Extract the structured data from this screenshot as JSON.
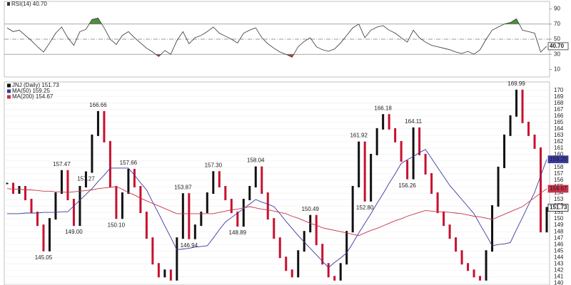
{
  "chart_data": [
    {
      "type": "line",
      "series": [
        {
          "name": "RSI(14) 40.70",
          "color": "#333333",
          "last_label": "40.70",
          "values": [
            65,
            60,
            62,
            55,
            48,
            40,
            33,
            45,
            58,
            66,
            52,
            42,
            60,
            63,
            76,
            78,
            65,
            50,
            43,
            55,
            60,
            52,
            45,
            38,
            33,
            27,
            35,
            30,
            48,
            60,
            44,
            52,
            55,
            60,
            66,
            58,
            54,
            50,
            45,
            58,
            62,
            65,
            52,
            44,
            38,
            33,
            30,
            26,
            40,
            47,
            52,
            40,
            36,
            34,
            37,
            45,
            55,
            65,
            70,
            52,
            62,
            66,
            68,
            62,
            58,
            52,
            46,
            62,
            52,
            46,
            42,
            40,
            38,
            36,
            33,
            31,
            34,
            30,
            36,
            50,
            62,
            66,
            70,
            72,
            77,
            62,
            60,
            58,
            33,
            40.7
          ]
        }
      ],
      "ylim": [
        0,
        100
      ],
      "yticks": [
        10,
        30,
        50,
        70,
        90
      ],
      "overbought": 70,
      "oversold": 30,
      "midline": 50,
      "overbought_color": "#4f8f3f",
      "oversold_color": "#a84a4a"
    },
    {
      "type": "stock",
      "series": [
        {
          "name": "JNJ (Daily) 151.73",
          "color": "#111111",
          "down_color": "#c8102e",
          "last_label": "151.73",
          "values": [
            155.5,
            154,
            155,
            153,
            151,
            149,
            145.05,
            150,
            154,
            157.47,
            153,
            149.0,
            155,
            157.27,
            163,
            166.66,
            162,
            155,
            150.1,
            154,
            157.66,
            155,
            151,
            147,
            143,
            141,
            142,
            140.5,
            147,
            153.87,
            146.94,
            149,
            151,
            154,
            157.3,
            155,
            153,
            151,
            148.89,
            153,
            155,
            158.04,
            154,
            150,
            147,
            144,
            142,
            141,
            145,
            148,
            150.49,
            146,
            143,
            141,
            140.5,
            143,
            148,
            155,
            161.92,
            152.8,
            160,
            164,
            166.18,
            164,
            162,
            159,
            156.26,
            164.11,
            160,
            157,
            154,
            151,
            149,
            147,
            145,
            143,
            142,
            141,
            140.5,
            145,
            152,
            158,
            163,
            166,
            169.99,
            165,
            163,
            161,
            148,
            151.73
          ],
          "value_labels": [
            null,
            null,
            null,
            null,
            null,
            null,
            "145.05",
            null,
            null,
            "157.47",
            null,
            "149.00",
            null,
            "157.27",
            null,
            "166.66",
            null,
            null,
            "150.10",
            null,
            "157.66",
            null,
            null,
            null,
            null,
            null,
            null,
            null,
            null,
            "153.87",
            "146.94",
            null,
            null,
            null,
            "157.30",
            null,
            null,
            null,
            "148.89",
            null,
            null,
            "158.04",
            null,
            null,
            null,
            null,
            null,
            null,
            null,
            null,
            "150.49",
            null,
            null,
            null,
            null,
            null,
            null,
            null,
            "161.92",
            "152.80",
            null,
            null,
            "166.18",
            null,
            null,
            null,
            "156.26",
            "164.11",
            null,
            null,
            null,
            null,
            null,
            null,
            null,
            null,
            null,
            null,
            null,
            null,
            null,
            null,
            null,
            null,
            "169.99",
            null,
            null,
            null,
            null,
            null
          ]
        },
        {
          "name": "MA(50) 159.25",
          "color": "#3a3aa0",
          "last_label": "159.25",
          "values": [
            150.8,
            150.8,
            150.8,
            150.9,
            150.9,
            150.9,
            151.0,
            151.0,
            151.0,
            151.1,
            151.1,
            152.0,
            152.9,
            153.8,
            154.7,
            155.8,
            156.8,
            157.9,
            157.9,
            157.9,
            157.9,
            156.8,
            155.6,
            154.5,
            152.6,
            150.8,
            148.9,
            147.1,
            145.2,
            145.3,
            145.4,
            145.6,
            145.7,
            145.8,
            147.0,
            148.3,
            149.5,
            150.2,
            150.9,
            151.6,
            152.3,
            153.0,
            152.6,
            152.3,
            151.9,
            150.8,
            149.6,
            148.5,
            147.4,
            146.4,
            145.4,
            144.4,
            143.4,
            142.4,
            143.2,
            143.9,
            144.7,
            146.2,
            147.8,
            149.3,
            150.8,
            152.4,
            153.9,
            155.5,
            157.0,
            158.6,
            159.2,
            159.7,
            160.3,
            160.8,
            159.4,
            158.0,
            156.6,
            155.2,
            154.1,
            153.0,
            151.9,
            150.8,
            149.1,
            147.5,
            145.8,
            146.0,
            146.1,
            146.3,
            148.3,
            150.2,
            152.2,
            154.1,
            156.7,
            159.25
          ]
        },
        {
          "name": "MA(200) 154.67",
          "color": "#c8324a",
          "last_label": "154.67",
          "values": [
            154.7,
            154.6,
            154.6,
            154.5,
            154.5,
            154.4,
            154.3,
            154.3,
            154.2,
            154.2,
            154.1,
            154.2,
            154.3,
            154.4,
            154.5,
            154.7,
            154.8,
            154.9,
            155.0,
            154.6,
            154.1,
            153.7,
            153.2,
            152.8,
            152.4,
            152.0,
            151.6,
            151.2,
            150.8,
            150.8,
            150.8,
            150.8,
            150.8,
            150.8,
            150.8,
            151.0,
            151.2,
            151.4,
            151.5,
            151.7,
            151.9,
            151.7,
            151.5,
            151.4,
            151.2,
            151.0,
            150.8,
            150.4,
            150.1,
            149.7,
            149.3,
            149.0,
            148.6,
            148.4,
            148.2,
            148.0,
            147.8,
            147.6,
            147.4,
            147.8,
            148.2,
            148.5,
            148.9,
            149.3,
            149.7,
            150.0,
            150.4,
            150.7,
            151.0,
            151.3,
            151.2,
            151.1,
            151.1,
            151.0,
            150.9,
            150.8,
            150.6,
            150.4,
            150.3,
            150.1,
            149.9,
            150.3,
            150.7,
            151.1,
            151.5,
            151.9,
            152.6,
            153.3,
            154.0,
            154.67
          ]
        }
      ],
      "ylim": [
        139.7,
        171.3
      ],
      "yticks": [
        140,
        141,
        142,
        143,
        144,
        145,
        146,
        147,
        148,
        149,
        150,
        151,
        152,
        153,
        154,
        155,
        156,
        157,
        158,
        159,
        160,
        161,
        162,
        163,
        164,
        165,
        166,
        167,
        168,
        169,
        170
      ],
      "grid": true
    }
  ]
}
